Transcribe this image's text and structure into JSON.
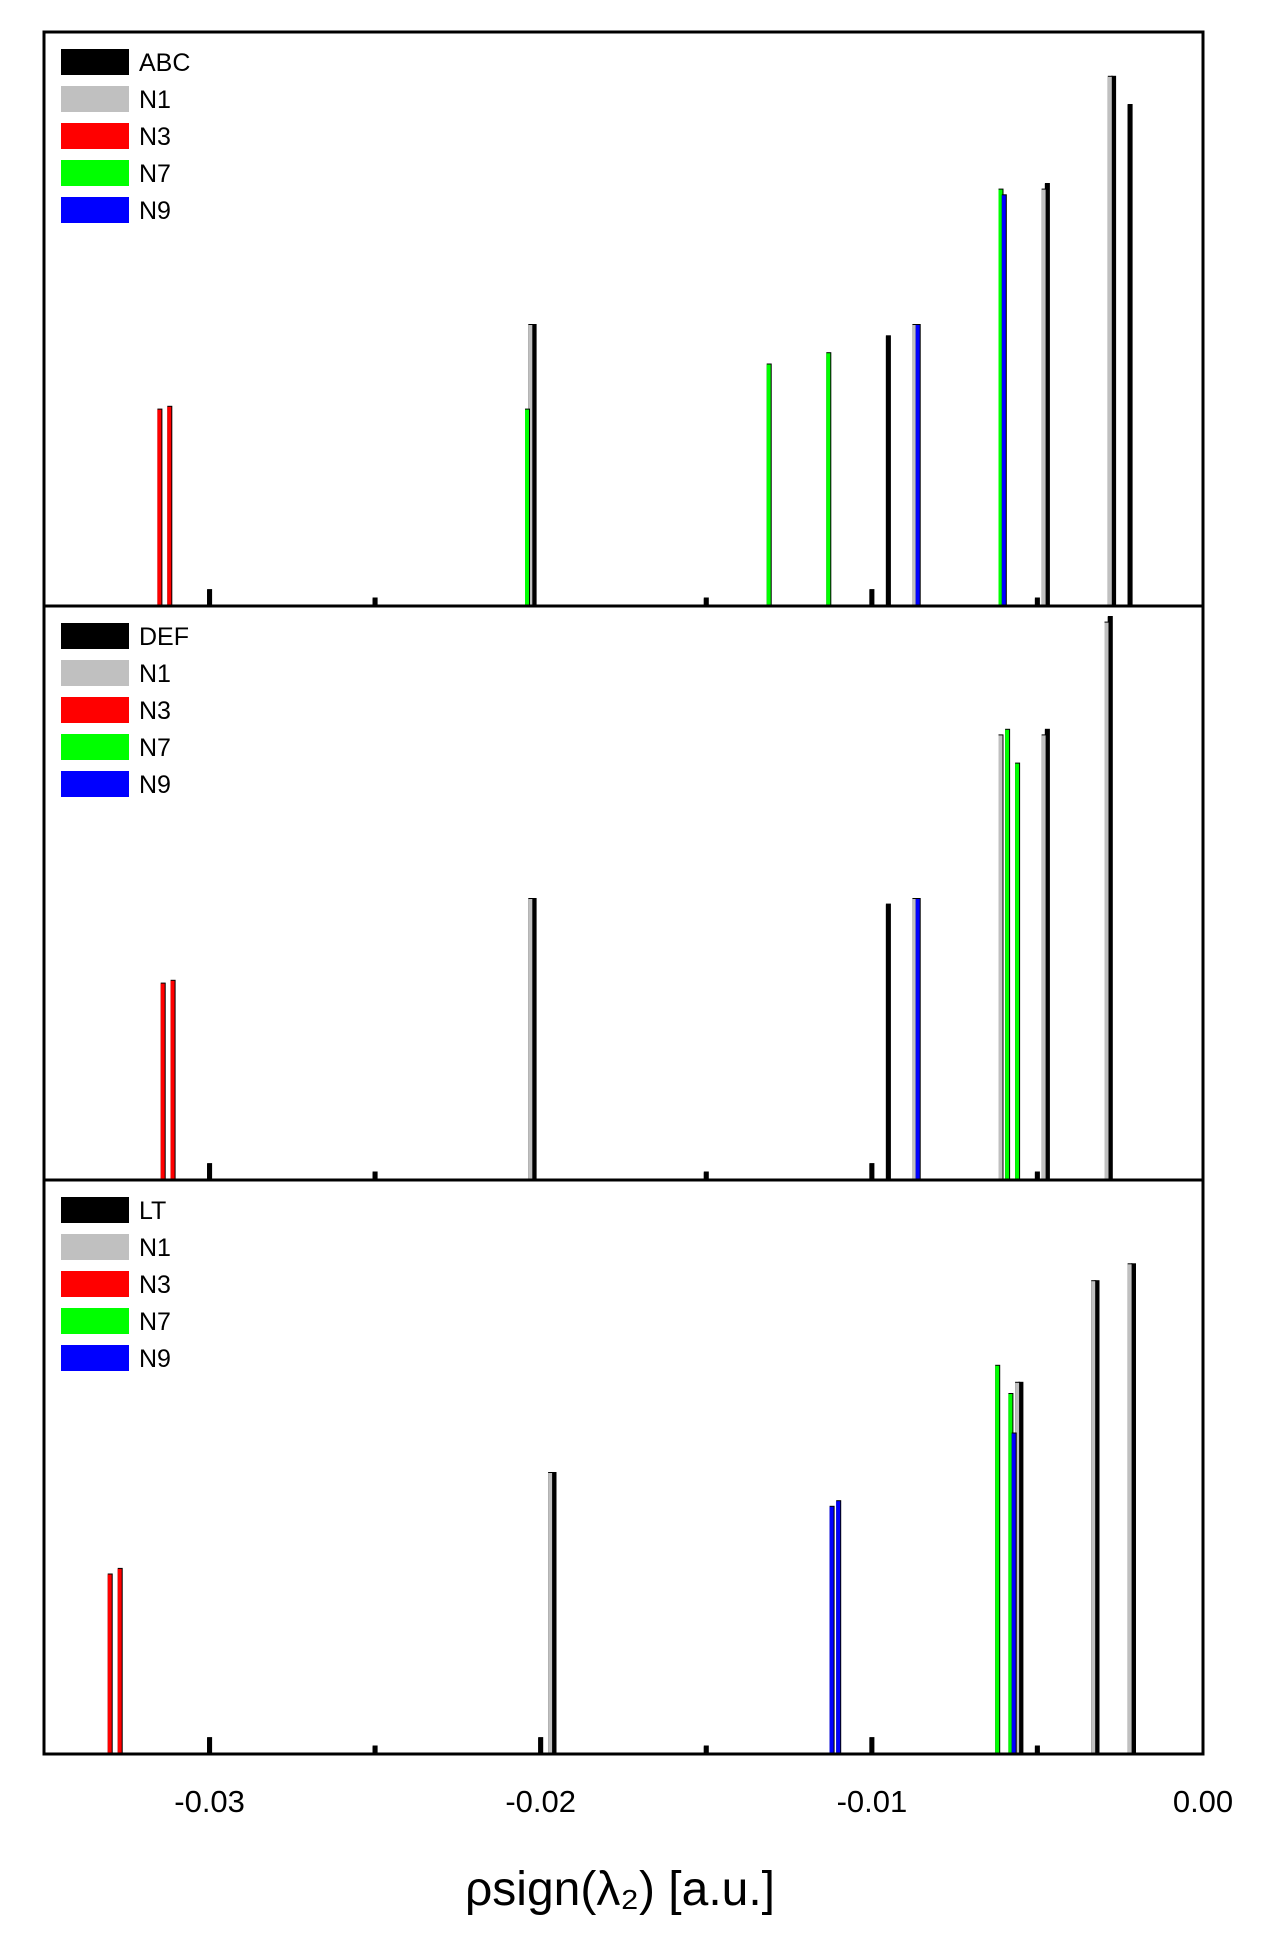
{
  "chart_data": {
    "type": "bar",
    "layout": "stacked-panels",
    "xlabel": "ρsign(λ₂) [a.u.]",
    "x_ticks": [
      "-0.03",
      "-0.02",
      "-0.01",
      "0.00"
    ],
    "xlim": [
      -0.035,
      0.0
    ],
    "grid": false,
    "legend_placement": "top-left",
    "colors": {
      "ABC": "#000000",
      "DEF": "#000000",
      "LT": "#000000",
      "N1": "#c0c0c0",
      "N3": "#ff0000",
      "N7": "#00ff00",
      "N9": "#0000ff"
    },
    "panels": [
      {
        "legend": [
          "ABC",
          "N1",
          "N3",
          "N7",
          "N9"
        ],
        "ylim": [
          0,
          1
        ],
        "bars": [
          {
            "series": "N3",
            "x": -0.0315,
            "y": 0.35
          },
          {
            "series": "N3",
            "x": -0.0312,
            "y": 0.355
          },
          {
            "series": "ABC",
            "x": -0.03,
            "y": 0.03
          },
          {
            "series": "ABC",
            "x": -0.025,
            "y": 0.015
          },
          {
            "series": "N7",
            "x": -0.0204,
            "y": 0.35
          },
          {
            "series": "N1",
            "x": -0.0203,
            "y": 0.5
          },
          {
            "series": "ABC",
            "x": -0.0202,
            "y": 0.5
          },
          {
            "series": "ABC",
            "x": -0.015,
            "y": 0.015
          },
          {
            "series": "N7",
            "x": -0.0131,
            "y": 0.43
          },
          {
            "series": "N7",
            "x": -0.0113,
            "y": 0.45
          },
          {
            "series": "ABC",
            "x": -0.01,
            "y": 0.03
          },
          {
            "series": "ABC",
            "x": -0.0095,
            "y": 0.48
          },
          {
            "series": "N1",
            "x": -0.0087,
            "y": 0.5
          },
          {
            "series": "N9",
            "x": -0.0086,
            "y": 0.5
          },
          {
            "series": "N7",
            "x": -0.0061,
            "y": 0.74
          },
          {
            "series": "N9",
            "x": -0.006,
            "y": 0.73
          },
          {
            "series": "ABC",
            "x": -0.005,
            "y": 0.015
          },
          {
            "series": "N1",
            "x": -0.0048,
            "y": 0.74
          },
          {
            "series": "ABC",
            "x": -0.0047,
            "y": 0.75
          },
          {
            "series": "N1",
            "x": -0.0028,
            "y": 0.94
          },
          {
            "series": "ABC",
            "x": -0.0027,
            "y": 0.94
          },
          {
            "series": "ABC",
            "x": -0.0022,
            "y": 0.89
          }
        ]
      },
      {
        "legend": [
          "DEF",
          "N1",
          "N3",
          "N7",
          "N9"
        ],
        "ylim": [
          0,
          1
        ],
        "bars": [
          {
            "series": "N3",
            "x": -0.0314,
            "y": 0.35
          },
          {
            "series": "N3",
            "x": -0.0311,
            "y": 0.355
          },
          {
            "series": "DEF",
            "x": -0.03,
            "y": 0.03
          },
          {
            "series": "DEF",
            "x": -0.025,
            "y": 0.015
          },
          {
            "series": "N1",
            "x": -0.0203,
            "y": 0.5
          },
          {
            "series": "DEF",
            "x": -0.0202,
            "y": 0.5
          },
          {
            "series": "DEF",
            "x": -0.015,
            "y": 0.015
          },
          {
            "series": "DEF",
            "x": -0.01,
            "y": 0.03
          },
          {
            "series": "DEF",
            "x": -0.0095,
            "y": 0.49
          },
          {
            "series": "N1",
            "x": -0.0087,
            "y": 0.5
          },
          {
            "series": "N9",
            "x": -0.0086,
            "y": 0.5
          },
          {
            "series": "N1",
            "x": -0.0061,
            "y": 0.79
          },
          {
            "series": "N7",
            "x": -0.0059,
            "y": 0.8
          },
          {
            "series": "N7",
            "x": -0.0056,
            "y": 0.74
          },
          {
            "series": "DEF",
            "x": -0.005,
            "y": 0.015
          },
          {
            "series": "N1",
            "x": -0.0048,
            "y": 0.79
          },
          {
            "series": "DEF",
            "x": -0.0047,
            "y": 0.8
          },
          {
            "series": "N1",
            "x": -0.0029,
            "y": 0.99
          },
          {
            "series": "DEF",
            "x": -0.0028,
            "y": 1.0
          }
        ]
      },
      {
        "legend": [
          "LT",
          "N1",
          "N3",
          "N7",
          "N9"
        ],
        "ylim": [
          0,
          1
        ],
        "bars": [
          {
            "series": "N3",
            "x": -0.033,
            "y": 0.32
          },
          {
            "series": "N3",
            "x": -0.0327,
            "y": 0.33
          },
          {
            "series": "LT",
            "x": -0.03,
            "y": 0.03
          },
          {
            "series": "LT",
            "x": -0.025,
            "y": 0.015
          },
          {
            "series": "LT",
            "x": -0.02,
            "y": 0.03
          },
          {
            "series": "N1",
            "x": -0.0197,
            "y": 0.5
          },
          {
            "series": "LT",
            "x": -0.0196,
            "y": 0.5
          },
          {
            "series": "LT",
            "x": -0.015,
            "y": 0.015
          },
          {
            "series": "N9",
            "x": -0.0112,
            "y": 0.44
          },
          {
            "series": "N9",
            "x": -0.011,
            "y": 0.45
          },
          {
            "series": "LT",
            "x": -0.01,
            "y": 0.03
          },
          {
            "series": "N7",
            "x": -0.0062,
            "y": 0.69
          },
          {
            "series": "N7",
            "x": -0.0058,
            "y": 0.64
          },
          {
            "series": "N9",
            "x": -0.0057,
            "y": 0.57
          },
          {
            "series": "N1",
            "x": -0.0056,
            "y": 0.66
          },
          {
            "series": "LT",
            "x": -0.0055,
            "y": 0.66
          },
          {
            "series": "LT",
            "x": -0.005,
            "y": 0.015
          },
          {
            "series": "N1",
            "x": -0.0033,
            "y": 0.84
          },
          {
            "series": "LT",
            "x": -0.0032,
            "y": 0.84
          },
          {
            "series": "N1",
            "x": -0.0022,
            "y": 0.87
          },
          {
            "series": "LT",
            "x": -0.0021,
            "y": 0.87
          }
        ]
      }
    ]
  }
}
